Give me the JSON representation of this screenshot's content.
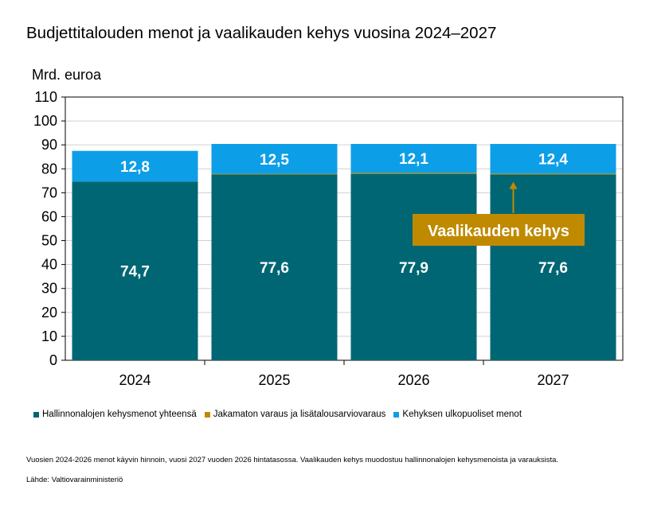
{
  "title": "Budjettitalouden menot ja vaalikauden kehys vuosina 2024–2027",
  "unit_label": "Mrd. euroa",
  "chart_data": {
    "type": "stacked-bar",
    "categories": [
      "2024",
      "2025",
      "2026",
      "2027"
    ],
    "series": [
      {
        "name": "Hallinnonalojen kehysmenot yhteensä",
        "color": "#006673",
        "values": [
          74.7,
          77.6,
          77.9,
          77.6
        ],
        "labels": [
          "74,7",
          "77,6",
          "77,9",
          "77,6"
        ]
      },
      {
        "name": "Jakamaton varaus ja lisätalousarviovaraus",
        "color": "#c08a00",
        "values": [
          0.0,
          0.3,
          0.4,
          0.4
        ],
        "labels": [
          "",
          "",
          "",
          ""
        ]
      },
      {
        "name": "Kehyksen ulkopuoliset menot",
        "color": "#0d9ee8",
        "values": [
          12.8,
          12.5,
          12.1,
          12.4
        ],
        "labels": [
          "12,8",
          "12,5",
          "12,1",
          "12,4"
        ]
      }
    ],
    "ylim": [
      0,
      110
    ],
    "yticks": [
      0,
      10,
      20,
      30,
      40,
      50,
      60,
      70,
      80,
      90,
      100,
      110
    ],
    "grid": true,
    "annotation": {
      "text": "Vaalikauden kehys",
      "category": "2027",
      "value": 77.9,
      "color": "#c08a00"
    }
  },
  "note": "Vuosien 2024-2026 menot käyvin hinnoin, vuosi 2027 vuoden 2026 hintatasossa. Vaalikauden kehys muodostuu hallinnonalojen kehysmenoista ja varauksista.",
  "source": "Lähde: Valtiovarainministeriö"
}
